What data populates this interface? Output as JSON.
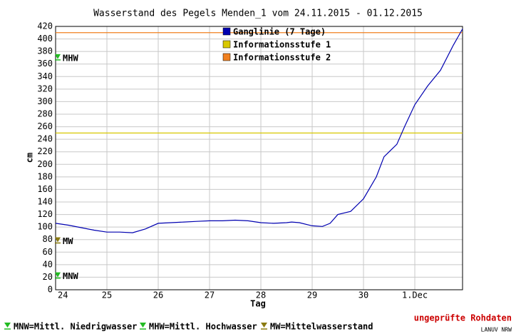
{
  "chart_data": {
    "type": "line",
    "title": "Wasserstand des Pegels Menden_1 vom 24.11.2015 - 01.12.2015",
    "x_label": "Tag",
    "y_label": "cm",
    "xlim": [
      24,
      31.93
    ],
    "xticks": [
      24,
      25,
      26,
      27,
      28,
      29,
      30,
      {
        "value": 31,
        "label": "1.Dec"
      }
    ],
    "ylim": [
      0,
      420
    ],
    "yticks": [
      0,
      20,
      40,
      60,
      80,
      100,
      120,
      140,
      160,
      180,
      200,
      220,
      240,
      260,
      280,
      300,
      320,
      340,
      360,
      380,
      400,
      420
    ],
    "grid": true,
    "series": [
      {
        "name": "Ganglinie (7 Tage)",
        "color": "#0000b0",
        "x": [
          24.0,
          24.25,
          24.5,
          24.75,
          25.0,
          25.25,
          25.5,
          25.75,
          26.0,
          26.25,
          26.5,
          26.75,
          27.0,
          27.25,
          27.5,
          27.75,
          28.0,
          28.25,
          28.5,
          28.6,
          28.75,
          29.0,
          29.2,
          29.35,
          29.5,
          29.75,
          30.0,
          30.25,
          30.4,
          30.5,
          30.65,
          30.8,
          31.0,
          31.25,
          31.5,
          31.75,
          31.93
        ],
        "values": [
          106,
          103,
          99,
          95,
          92,
          92,
          91,
          97,
          106,
          107,
          108,
          109,
          110,
          110,
          111,
          110,
          107,
          106,
          107,
          108,
          107,
          102,
          101,
          106,
          120,
          125,
          145,
          180,
          212,
          220,
          232,
          260,
          295,
          325,
          350,
          390,
          416
        ]
      }
    ],
    "thresholds": [
      {
        "name": "Informationsstufe 1",
        "color": "#d8c800",
        "value": 250
      },
      {
        "name": "Informationsstufe 2",
        "color": "#f08020",
        "value": 410
      }
    ],
    "markers": [
      {
        "label": "MHW",
        "value": 370,
        "color": "#22bb22"
      },
      {
        "label": "MW",
        "value": 78,
        "color": "#8a7a10"
      },
      {
        "label": "MNW",
        "value": 22,
        "color": "#22bb22"
      }
    ],
    "footer_legend": [
      {
        "label": "MNW=Mittl. Niedrigwasser",
        "color": "#22bb22"
      },
      {
        "label": "MHW=Mittl. Hochwasser",
        "color": "#22bb22"
      },
      {
        "label": "MW=Mittelwasserstand",
        "color": "#8a7a10"
      }
    ],
    "status": "ungeprüfte Rohdaten",
    "source": "LANUV NRW"
  }
}
